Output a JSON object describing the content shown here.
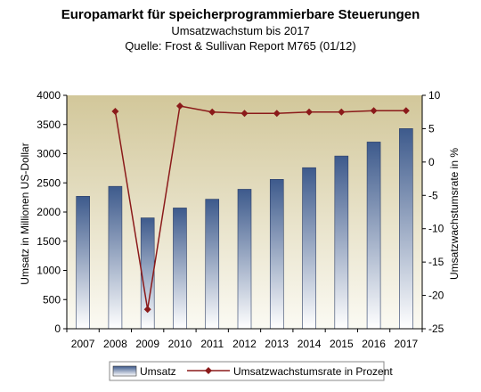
{
  "title": "Europamarkt für speicherprogrammierbare Steuerungen",
  "subtitle": "Umsatzwachstum bis 2017",
  "source": "Quelle: Frost & Sullivan Report M765 (01/12)",
  "chart_data": {
    "type": "bar",
    "categories": [
      "2007",
      "2008",
      "2009",
      "2010",
      "2011",
      "2012",
      "2013",
      "2014",
      "2015",
      "2016",
      "2017"
    ],
    "series": [
      {
        "name": "Umsatz",
        "type": "bar",
        "axis": "left",
        "values": [
          2270,
          2440,
          1900,
          2070,
          2220,
          2390,
          2560,
          2760,
          2960,
          3200,
          3430
        ]
      },
      {
        "name": "Umsatzwachstumsrate in Prozent",
        "type": "line",
        "axis": "right",
        "values": [
          null,
          7.6,
          -22.1,
          8.4,
          7.5,
          7.3,
          7.3,
          7.5,
          7.5,
          7.7,
          7.7
        ]
      }
    ],
    "ylabel": "Umsatz in Millionen US-Dollar",
    "ylim": [
      0,
      4000
    ],
    "yticks": [
      "0",
      "500",
      "1000",
      "1500",
      "2000",
      "2500",
      "3000",
      "3500",
      "4000"
    ],
    "y2label": "Umsatzwachstumsrate in %",
    "y2lim": [
      -25,
      10
    ],
    "y2ticks": [
      "-25",
      "-20",
      "-15",
      "-10",
      "-5",
      "0",
      "5",
      "10"
    ],
    "legend_position": "bottom",
    "colors": {
      "bar_dark": "#3d5a8c",
      "bar_light": "#ffffff",
      "line": "#8b1a1a",
      "plot_bg_top": "#d2c79a",
      "plot_bg_bottom": "#fbfaf3"
    }
  }
}
